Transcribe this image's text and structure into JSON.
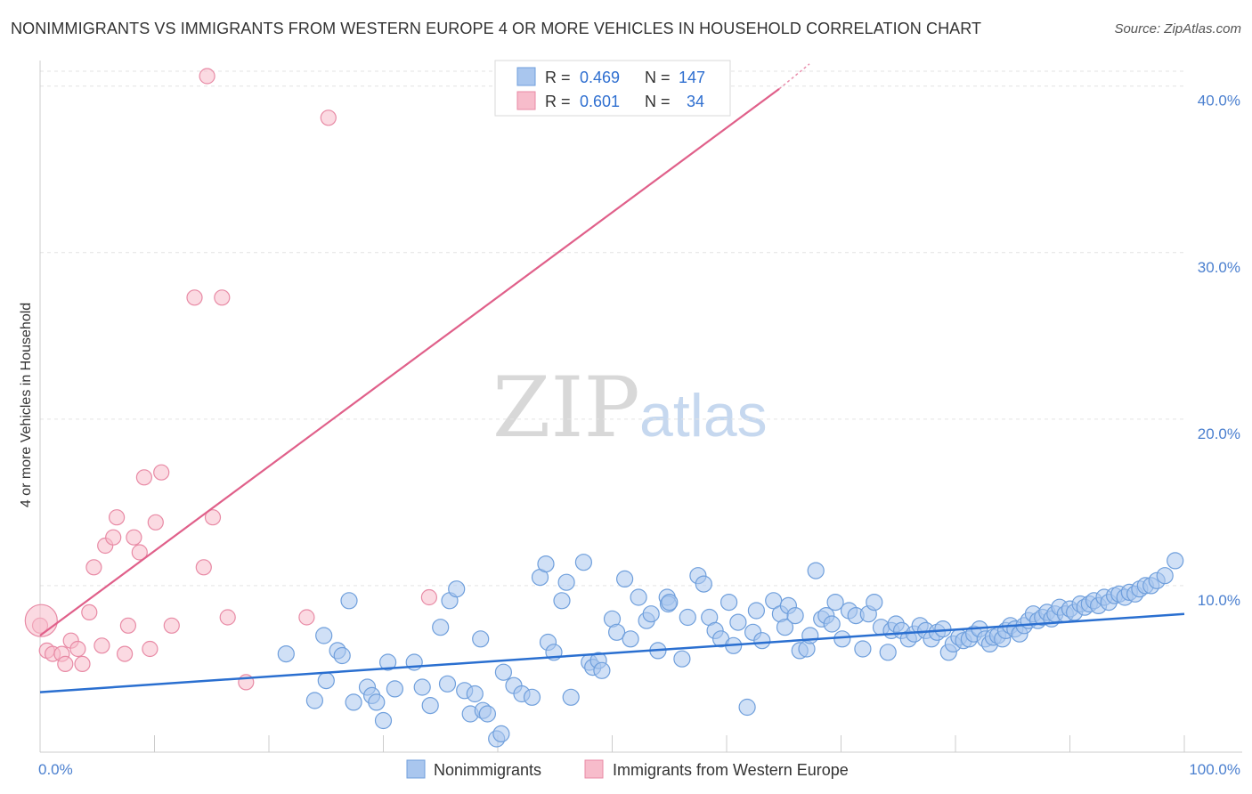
{
  "header": {
    "title": "NONIMMIGRANTS VS IMMIGRANTS FROM WESTERN EUROPE 4 OR MORE VEHICLES IN HOUSEHOLD CORRELATION CHART",
    "source": "Source: ZipAtlas.com"
  },
  "watermark": {
    "zip": "ZIP",
    "atlas": "atlas"
  },
  "chart_data": {
    "type": "scatter",
    "ylabel": "4 or more Vehicles in Household",
    "xlim": [
      0,
      100
    ],
    "ylim": [
      0,
      41
    ],
    "x_ticks": [
      {
        "value": 0,
        "label": "0.0%"
      },
      {
        "value": 100,
        "label": "100.0%"
      }
    ],
    "y_ticks": [
      {
        "value": 10,
        "label": "10.0%"
      },
      {
        "value": 20,
        "label": "20.0%"
      },
      {
        "value": 30,
        "label": "30.0%"
      },
      {
        "value": 40,
        "label": "40.0%"
      }
    ],
    "legend_position": "top-center",
    "colors": {
      "nonimmigrants_fill": "#a9c6ee",
      "nonimmigrants_stroke": "#6f9fdc",
      "nonimmigrants_line": "#2a6fd0",
      "immigrants_fill": "#f7bccb",
      "immigrants_stroke": "#e88aa5",
      "immigrants_line": "#e0608a"
    },
    "stats": [
      {
        "r_label": "R =",
        "r": "0.469",
        "n_label": "N =",
        "n": "147"
      },
      {
        "r_label": "R =",
        "r": "0.601",
        "n_label": "N =",
        "n": "34"
      }
    ],
    "series": [
      {
        "name": "Nonimmigrants",
        "trend": {
          "x0": 0,
          "y0": 3.6,
          "x1": 100,
          "y1": 8.3
        },
        "points": [
          [
            21.5,
            5.9
          ],
          [
            24.8,
            7.0
          ],
          [
            26.0,
            6.1
          ],
          [
            26.4,
            5.8
          ],
          [
            27.0,
            9.1
          ],
          [
            25.0,
            4.3
          ],
          [
            24.0,
            3.1
          ],
          [
            27.4,
            3.0
          ],
          [
            28.6,
            3.9
          ],
          [
            29.0,
            3.4
          ],
          [
            29.4,
            3.0
          ],
          [
            30.0,
            1.9
          ],
          [
            30.4,
            5.4
          ],
          [
            31.0,
            3.8
          ],
          [
            32.7,
            5.4
          ],
          [
            33.4,
            3.9
          ],
          [
            34.1,
            2.8
          ],
          [
            35.0,
            7.5
          ],
          [
            35.6,
            4.1
          ],
          [
            35.8,
            9.1
          ],
          [
            36.4,
            9.8
          ],
          [
            37.1,
            3.7
          ],
          [
            37.6,
            2.3
          ],
          [
            38.0,
            3.5
          ],
          [
            38.5,
            6.8
          ],
          [
            38.7,
            2.5
          ],
          [
            39.1,
            2.3
          ],
          [
            39.9,
            0.8
          ],
          [
            40.3,
            1.1
          ],
          [
            40.5,
            4.8
          ],
          [
            41.4,
            4.0
          ],
          [
            42.1,
            3.5
          ],
          [
            43.0,
            3.3
          ],
          [
            43.7,
            10.5
          ],
          [
            44.2,
            11.3
          ],
          [
            44.4,
            6.6
          ],
          [
            44.9,
            6.0
          ],
          [
            45.6,
            9.1
          ],
          [
            46.0,
            10.2
          ],
          [
            46.4,
            3.3
          ],
          [
            47.5,
            11.4
          ],
          [
            48.0,
            5.4
          ],
          [
            48.3,
            5.1
          ],
          [
            48.8,
            5.5
          ],
          [
            49.1,
            4.9
          ],
          [
            50.0,
            8.0
          ],
          [
            50.4,
            7.2
          ],
          [
            51.1,
            10.4
          ],
          [
            51.6,
            6.8
          ],
          [
            52.3,
            9.3
          ],
          [
            53.0,
            7.9
          ],
          [
            53.4,
            8.3
          ],
          [
            54.0,
            6.1
          ],
          [
            54.8,
            9.3
          ],
          [
            54.9,
            8.9
          ],
          [
            55.0,
            9.0
          ],
          [
            56.1,
            5.6
          ],
          [
            56.6,
            8.1
          ],
          [
            57.5,
            10.6
          ],
          [
            58.0,
            10.1
          ],
          [
            58.5,
            8.1
          ],
          [
            59.0,
            7.3
          ],
          [
            59.5,
            6.8
          ],
          [
            60.2,
            9.0
          ],
          [
            60.6,
            6.4
          ],
          [
            61.0,
            7.8
          ],
          [
            61.8,
            2.7
          ],
          [
            62.3,
            7.2
          ],
          [
            62.6,
            8.5
          ],
          [
            63.1,
            6.7
          ],
          [
            64.1,
            9.1
          ],
          [
            64.7,
            8.3
          ],
          [
            65.1,
            7.5
          ],
          [
            65.4,
            8.8
          ],
          [
            66.0,
            8.2
          ],
          [
            66.4,
            6.1
          ],
          [
            67.0,
            6.2
          ],
          [
            67.3,
            7.0
          ],
          [
            67.8,
            10.9
          ],
          [
            68.3,
            8.0
          ],
          [
            68.7,
            8.2
          ],
          [
            69.2,
            7.7
          ],
          [
            69.5,
            9.0
          ],
          [
            70.1,
            6.8
          ],
          [
            70.7,
            8.5
          ],
          [
            71.3,
            8.2
          ],
          [
            71.9,
            6.2
          ],
          [
            72.4,
            8.3
          ],
          [
            72.9,
            9.0
          ],
          [
            73.5,
            7.5
          ],
          [
            74.1,
            6.0
          ],
          [
            74.4,
            7.3
          ],
          [
            74.8,
            7.7
          ],
          [
            75.3,
            7.3
          ],
          [
            75.9,
            6.8
          ],
          [
            76.4,
            7.1
          ],
          [
            76.9,
            7.6
          ],
          [
            77.4,
            7.3
          ],
          [
            77.9,
            6.8
          ],
          [
            78.4,
            7.2
          ],
          [
            78.9,
            7.4
          ],
          [
            79.4,
            6.0
          ],
          [
            79.8,
            6.5
          ],
          [
            80.3,
            6.9
          ],
          [
            80.7,
            6.7
          ],
          [
            81.2,
            6.8
          ],
          [
            81.6,
            7.1
          ],
          [
            82.1,
            7.4
          ],
          [
            82.6,
            6.8
          ],
          [
            83.0,
            6.5
          ],
          [
            83.3,
            6.9
          ],
          [
            83.7,
            7.0
          ],
          [
            84.1,
            6.8
          ],
          [
            84.4,
            7.3
          ],
          [
            84.8,
            7.6
          ],
          [
            85.2,
            7.4
          ],
          [
            85.6,
            7.1
          ],
          [
            86.0,
            7.6
          ],
          [
            86.4,
            7.9
          ],
          [
            86.8,
            8.3
          ],
          [
            87.2,
            7.9
          ],
          [
            87.6,
            8.1
          ],
          [
            88.0,
            8.4
          ],
          [
            88.4,
            8.0
          ],
          [
            88.7,
            8.3
          ],
          [
            89.1,
            8.7
          ],
          [
            89.6,
            8.3
          ],
          [
            90.0,
            8.6
          ],
          [
            90.4,
            8.4
          ],
          [
            90.9,
            8.9
          ],
          [
            91.3,
            8.7
          ],
          [
            91.7,
            8.9
          ],
          [
            92.1,
            9.1
          ],
          [
            92.5,
            8.8
          ],
          [
            93.0,
            9.3
          ],
          [
            93.4,
            9.0
          ],
          [
            93.9,
            9.4
          ],
          [
            94.3,
            9.5
          ],
          [
            94.8,
            9.3
          ],
          [
            95.2,
            9.6
          ],
          [
            95.7,
            9.5
          ],
          [
            96.1,
            9.8
          ],
          [
            96.6,
            10.0
          ],
          [
            97.1,
            10.0
          ],
          [
            97.6,
            10.3
          ],
          [
            98.3,
            10.6
          ],
          [
            99.2,
            11.5
          ]
        ]
      },
      {
        "name": "Immigrants from Western Europe",
        "trend": {
          "x0": 0,
          "y0": 7.0,
          "x1": 66.5,
          "y1": 41.0
        },
        "points": [
          [
            0.0,
            7.6
          ],
          [
            0.6,
            6.1
          ],
          [
            1.1,
            5.9
          ],
          [
            1.9,
            5.9
          ],
          [
            2.2,
            5.3
          ],
          [
            2.7,
            6.7
          ],
          [
            3.3,
            6.2
          ],
          [
            3.7,
            5.3
          ],
          [
            4.3,
            8.4
          ],
          [
            4.7,
            11.1
          ],
          [
            5.4,
            6.4
          ],
          [
            5.7,
            12.4
          ],
          [
            6.4,
            12.9
          ],
          [
            6.7,
            14.1
          ],
          [
            7.4,
            5.9
          ],
          [
            7.7,
            7.6
          ],
          [
            8.2,
            12.9
          ],
          [
            8.7,
            12.0
          ],
          [
            9.1,
            16.5
          ],
          [
            9.6,
            6.2
          ],
          [
            10.1,
            13.8
          ],
          [
            10.6,
            16.8
          ],
          [
            11.5,
            7.6
          ],
          [
            13.5,
            27.3
          ],
          [
            14.3,
            11.1
          ],
          [
            14.6,
            40.6
          ],
          [
            15.1,
            14.1
          ],
          [
            15.9,
            27.3
          ],
          [
            16.4,
            8.1
          ],
          [
            18.0,
            4.2
          ],
          [
            23.3,
            8.1
          ],
          [
            25.2,
            38.1
          ],
          [
            34.0,
            9.3
          ],
          [
            0.1,
            7.9
          ]
        ]
      }
    ]
  },
  "bottom_legend": {
    "nonimmigrants": "Nonimmigrants",
    "immigrants": "Immigrants from Western Europe"
  }
}
